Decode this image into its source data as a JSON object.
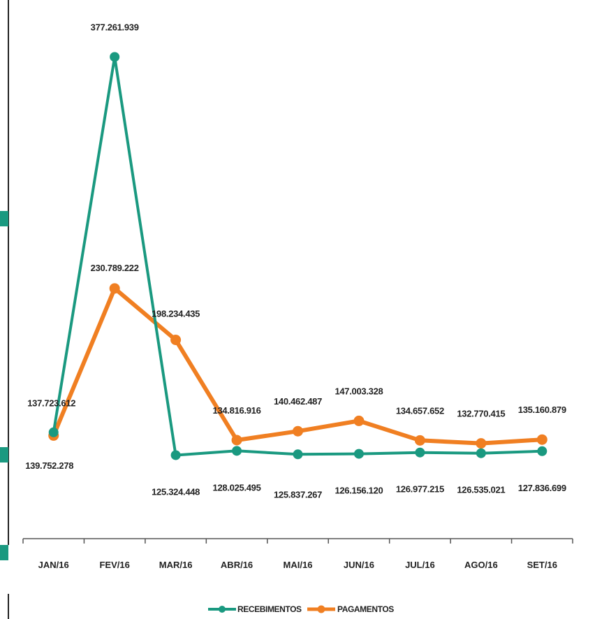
{
  "chart_data": {
    "type": "line",
    "title": "",
    "xlabel": "",
    "ylabel": "",
    "categories": [
      "JAN/16",
      "FEV/16",
      "MAR/16",
      "ABR/16",
      "MAI/16",
      "JUN/16",
      "JUL/16",
      "AGO/16",
      "SET/16"
    ],
    "ylim": [
      0,
      400000000
    ],
    "grid": false,
    "legend_position": "bottom",
    "series": [
      {
        "name": "RECEBIMENTOS",
        "color": "#1a9980",
        "values": [
          139752278,
          377261939,
          125324448,
          128025495,
          125837267,
          126156120,
          126977215,
          126535021,
          127836699
        ],
        "labels": [
          "139.752.278",
          "377.261.939",
          "125.324.448",
          "128.025.495",
          "125.837.267",
          "126.156.120",
          "126.977.215",
          "126.535.021",
          "127.836.699"
        ]
      },
      {
        "name": "PAGAMENTOS",
        "color": "#f07f22",
        "values": [
          137723612,
          230789222,
          198234435,
          134816916,
          140462487,
          147003328,
          134657652,
          132770415,
          135160879
        ],
        "labels": [
          "137.723.612",
          "230.789.222",
          "198.234.435",
          "134.816.916",
          "140.462.487",
          "147.003.328",
          "134.657.652",
          "132.770.415",
          "135.160.879"
        ]
      }
    ]
  }
}
